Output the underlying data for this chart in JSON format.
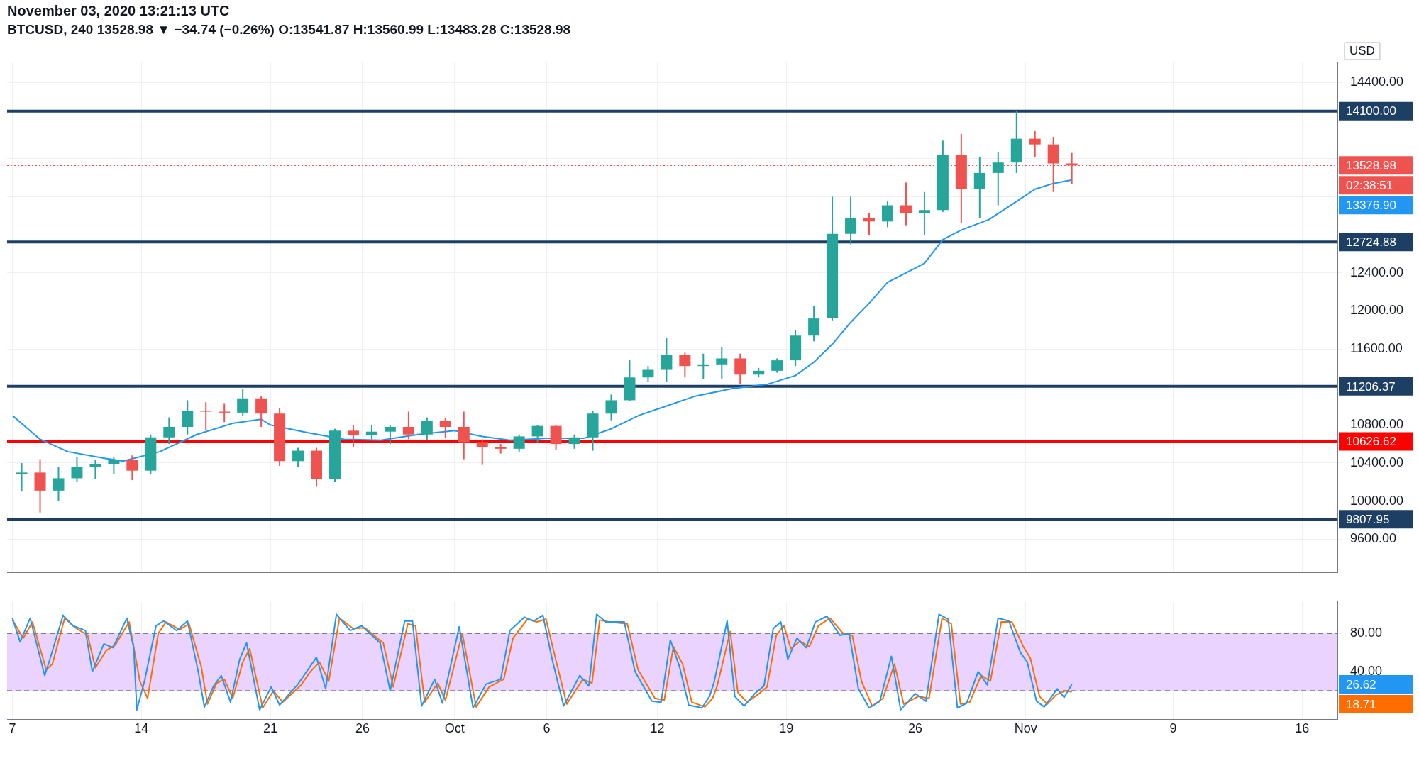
{
  "chart_data": [
    {
      "type": "candlestick",
      "title": "November 03, 2020 13:21:13 UTC",
      "subtitle": "BTCUSD, 240  13528.98 ▼ −34.74 (−0.26%)  O:13541.87  H:13560.99  L:13483.28  C:13528.98",
      "x": [
        "2020-09-07T12:00",
        "2020-09-08T12:00",
        "2020-09-09T12:00",
        "2020-09-10T12:00",
        "2020-09-11T12:00",
        "2020-09-12T12:00",
        "2020-09-13T12:00",
        "2020-09-14T12:00",
        "2020-09-15T12:00",
        "2020-09-16T12:00",
        "2020-09-17T12:00",
        "2020-09-18T12:00",
        "2020-09-19T12:00",
        "2020-09-20T12:00",
        "2020-09-21T12:00",
        "2020-09-22T12:00",
        "2020-09-23T12:00",
        "2020-09-24T12:00",
        "2020-09-25T12:00",
        "2020-09-26T12:00",
        "2020-09-27T12:00",
        "2020-09-28T12:00",
        "2020-09-29T12:00",
        "2020-09-30T12:00",
        "2020-10-01T12:00",
        "2020-10-02T12:00",
        "2020-10-03T12:00",
        "2020-10-04T12:00",
        "2020-10-05T12:00",
        "2020-10-06T12:00",
        "2020-10-07T12:00",
        "2020-10-08T12:00",
        "2020-10-09T12:00",
        "2020-10-10T12:00",
        "2020-10-11T12:00",
        "2020-10-12T12:00",
        "2020-10-13T12:00",
        "2020-10-14T12:00",
        "2020-10-15T12:00",
        "2020-10-16T12:00",
        "2020-10-17T12:00",
        "2020-10-18T12:00",
        "2020-10-19T12:00",
        "2020-10-20T12:00",
        "2020-10-21T12:00",
        "2020-10-22T12:00",
        "2020-10-23T12:00",
        "2020-10-24T12:00",
        "2020-10-25T12:00",
        "2020-10-26T12:00",
        "2020-10-27T12:00",
        "2020-10-28T12:00",
        "2020-10-29T12:00",
        "2020-10-30T12:00",
        "2020-10-31T12:00",
        "2020-11-01T12:00",
        "2020-11-02T12:00",
        "2020-11-03T12:00"
      ],
      "ohlc": [
        [
          10280,
          10400,
          10100,
          10300
        ],
        [
          10300,
          10440,
          9880,
          10110
        ],
        [
          10110,
          10360,
          10000,
          10240
        ],
        [
          10240,
          10460,
          10200,
          10360
        ],
        [
          10360,
          10430,
          10230,
          10390
        ],
        [
          10390,
          10460,
          10280,
          10430
        ],
        [
          10430,
          10480,
          10220,
          10320
        ],
        [
          10320,
          10700,
          10280,
          10670
        ],
        [
          10670,
          10880,
          10600,
          10780
        ],
        [
          10780,
          11060,
          10700,
          10950
        ],
        [
          10950,
          11040,
          10750,
          10940
        ],
        [
          10940,
          11030,
          10830,
          10930
        ],
        [
          10930,
          11180,
          10900,
          11080
        ],
        [
          11080,
          11100,
          10780,
          10920
        ],
        [
          10920,
          10980,
          10370,
          10420
        ],
        [
          10420,
          10560,
          10360,
          10530
        ],
        [
          10530,
          10560,
          10150,
          10230
        ],
        [
          10230,
          10760,
          10200,
          10740
        ],
        [
          10740,
          10800,
          10570,
          10690
        ],
        [
          10690,
          10800,
          10650,
          10730
        ],
        [
          10730,
          10800,
          10600,
          10780
        ],
        [
          10780,
          10940,
          10650,
          10700
        ],
        [
          10700,
          10880,
          10640,
          10840
        ],
        [
          10840,
          10870,
          10660,
          10780
        ],
        [
          10780,
          10940,
          10440,
          10620
        ],
        [
          10620,
          10650,
          10380,
          10570
        ],
        [
          10570,
          10600,
          10500,
          10550
        ],
        [
          10550,
          10700,
          10520,
          10680
        ],
        [
          10680,
          10800,
          10620,
          10790
        ],
        [
          10790,
          10800,
          10540,
          10600
        ],
        [
          10600,
          10700,
          10550,
          10670
        ],
        [
          10670,
          10950,
          10530,
          10920
        ],
        [
          10920,
          11120,
          10850,
          11060
        ],
        [
          11060,
          11480,
          11050,
          11300
        ],
        [
          11300,
          11420,
          11250,
          11380
        ],
        [
          11380,
          11720,
          11250,
          11540
        ],
        [
          11540,
          11560,
          11300,
          11420
        ],
        [
          11420,
          11550,
          11280,
          11430
        ],
        [
          11430,
          11620,
          11280,
          11500
        ],
        [
          11500,
          11550,
          11230,
          11330
        ],
        [
          11330,
          11400,
          11300,
          11370
        ],
        [
          11370,
          11500,
          11350,
          11480
        ],
        [
          11480,
          11800,
          11420,
          11740
        ],
        [
          11740,
          12050,
          11680,
          11920
        ],
        [
          11920,
          13200,
          11900,
          12810
        ],
        [
          12810,
          13200,
          12700,
          12980
        ],
        [
          12980,
          13030,
          12800,
          12940
        ],
        [
          12940,
          13150,
          12880,
          13110
        ],
        [
          13110,
          13350,
          12900,
          13030
        ],
        [
          13030,
          13250,
          12800,
          13060
        ],
        [
          13060,
          13790,
          13040,
          13640
        ],
        [
          13640,
          13860,
          12920,
          13280
        ],
        [
          13280,
          13620,
          12980,
          13450
        ],
        [
          13450,
          13670,
          13110,
          13560
        ],
        [
          13560,
          14100,
          13450,
          13810
        ],
        [
          13810,
          13890,
          13620,
          13750
        ],
        [
          13750,
          13830,
          13250,
          13550
        ],
        [
          13550,
          13660,
          13330,
          13528.98
        ]
      ],
      "series": [
        {
          "type": "line",
          "color": "#2196f3",
          "x": [
            "2020-09-07T00:00",
            "2020-09-08T12:00",
            "2020-09-10T00:00",
            "2020-09-12T00:00",
            "2020-09-13T00:00",
            "2020-09-15T00:00",
            "2020-09-17T00:00",
            "2020-09-19T00:00",
            "2020-09-20T12:00",
            "2020-09-21T00:00",
            "2020-09-23T00:00",
            "2020-09-25T00:00",
            "2020-09-27T00:00",
            "2020-09-29T00:00",
            "2020-10-01T00:00",
            "2020-10-02T12:00",
            "2020-10-04T00:00",
            "2020-10-06T00:00",
            "2020-10-08T00:00",
            "2020-10-09T12:00",
            "2020-10-11T00:00",
            "2020-10-12T12:00",
            "2020-10-14T00:00",
            "2020-10-16T00:00",
            "2020-10-18T00:00",
            "2020-10-19T12:00",
            "2020-10-20T12:00",
            "2020-10-21T12:00",
            "2020-10-22T12:00",
            "2020-10-23T12:00",
            "2020-10-24T12:00",
            "2020-10-26T12:00",
            "2020-10-27T12:00",
            "2020-10-28T12:00",
            "2020-10-30T00:00",
            "2020-10-31T12:00",
            "2020-11-01T12:00",
            "2020-11-02T12:00",
            "2020-11-03T12:00"
          ],
          "values": [
            10900,
            10650,
            10520,
            10450,
            10420,
            10520,
            10700,
            10820,
            10860,
            10800,
            10720,
            10650,
            10640,
            10700,
            10740,
            10680,
            10640,
            10660,
            10660,
            10760,
            10900,
            11000,
            11100,
            11180,
            11230,
            11320,
            11460,
            11650,
            11880,
            12080,
            12300,
            12500,
            12750,
            12850,
            12960,
            13150,
            13280,
            13340,
            13376.9
          ]
        }
      ],
      "xlim": [
        "2020-09-06T17:00",
        "2020-11-17T22:00"
      ],
      "xticks": [
        {
          "value": "2020-09-07",
          "label": null
        },
        {
          "value": "2020-09-14",
          "label": null
        },
        {
          "value": "2020-09-21",
          "label": null
        },
        {
          "value": "2020-09-26",
          "label": null
        },
        {
          "value": "2020-10-01",
          "label": null
        },
        {
          "value": "2020-10-06",
          "label": null
        },
        {
          "value": "2020-10-12",
          "label": null
        },
        {
          "value": "2020-10-19",
          "label": null
        },
        {
          "value": "2020-10-26",
          "label": null
        },
        {
          "value": "2020-11-01",
          "label": null
        },
        {
          "value": "2020-11-09",
          "label": null
        },
        {
          "value": "2020-11-16",
          "label": null
        }
      ],
      "ylim": [
        9250,
        14620
      ],
      "yticks": [
        {
          "value": 9600,
          "label": "9600.00"
        },
        {
          "value": 10000,
          "label": "10000.00"
        },
        {
          "value": 10400,
          "label": "10400.00"
        },
        {
          "value": 10800,
          "label": "10800.00"
        },
        {
          "value": 11200,
          "label": null
        },
        {
          "value": 11600,
          "label": "11600.00"
        },
        {
          "value": 12000,
          "label": "12000.00"
        },
        {
          "value": 12400,
          "label": "12400.00"
        },
        {
          "value": 12800,
          "label": null
        },
        {
          "value": 13200,
          "label": null
        },
        {
          "value": 13600,
          "label": null
        },
        {
          "value": 14000,
          "label": null
        },
        {
          "value": 14400,
          "label": "14400.00"
        }
      ],
      "ref_lines": [
        {
          "axis": "y",
          "value": 14100,
          "label": "14100.00",
          "color": "#1c3f63"
        },
        {
          "axis": "y",
          "value": 12724.88,
          "label": "12724.88",
          "color": "#1c3f63"
        },
        {
          "axis": "y",
          "value": 11206.37,
          "label": "11206.37",
          "color": "#1c3f63"
        },
        {
          "axis": "y",
          "value": 10626.62,
          "label": "10626.62",
          "color": "#ff0000"
        },
        {
          "axis": "y",
          "value": 9807.95,
          "label": "9807.95",
          "color": "#1c3f63"
        },
        {
          "axis": "y",
          "value": 13528.98,
          "label": "13528.98",
          "color": "#ef5350",
          "line_style": "dotted"
        }
      ],
      "annotations": [
        "USD",
        "02:38:51",
        "13376.90"
      ],
      "grid": true,
      "tick_labels": "y"
    },
    {
      "type": "line",
      "series": [
        {
          "color": "#2196f3",
          "x": [
            "2020-09-07T00:00",
            "2020-09-07T10:00",
            "2020-09-07T23:00",
            "2020-09-08T18:00",
            "2020-09-09T00:00",
            "2020-09-09T18:00",
            "2020-09-10T07:00",
            "2020-09-10T23:00",
            "2020-09-11T08:00",
            "2020-09-11T23:00",
            "2020-09-12T11:00",
            "2020-09-13T05:00",
            "2020-09-13T14:00",
            "2020-09-13T18:00",
            "2020-09-14T04:00",
            "2020-09-14T19:00",
            "2020-09-15T05:00",
            "2020-09-15T22:00",
            "2020-09-16T12:00",
            "2020-09-17T02:00",
            "2020-09-17T10:00",
            "2020-09-17T22:00",
            "2020-09-18T08:00",
            "2020-09-18T20:00",
            "2020-09-19T08:00",
            "2020-09-19T17:00",
            "2020-09-20T10:00",
            "2020-09-21T01:00",
            "2020-09-21T12:00",
            "2020-09-22T12:00",
            "2020-09-23T00:00",
            "2020-09-23T12:00",
            "2020-09-24T00:00",
            "2020-09-24T14:00",
            "2020-09-25T08:00",
            "2020-09-25T23:00",
            "2020-09-26T23:00",
            "2020-09-27T12:00",
            "2020-09-28T07:00",
            "2020-09-28T17:00",
            "2020-09-29T05:00",
            "2020-09-29T22:00",
            "2020-09-30T08:00",
            "2020-10-01T06:00",
            "2020-10-02T00:00",
            "2020-10-02T17:00",
            "2020-10-03T12:00",
            "2020-10-04T00:00",
            "2020-10-04T19:00",
            "2020-10-05T07:00",
            "2020-10-05T19:00",
            "2020-10-06T07:00",
            "2020-10-06T22:00",
            "2020-10-07T19:00",
            "2020-10-08T07:00",
            "2020-10-08T17:00",
            "2020-10-09T05:00",
            "2020-10-10T05:00",
            "2020-10-10T19:00",
            "2020-10-11T17:00",
            "2020-10-12T05:00",
            "2020-10-12T17:00",
            "2020-10-13T05:00",
            "2020-10-13T17:00",
            "2020-10-14T10:00",
            "2020-10-14T20:00",
            "2020-10-15T02:00",
            "2020-10-15T19:00",
            "2020-10-16T05:00",
            "2020-10-16T17:00",
            "2020-10-17T07:00",
            "2020-10-17T19:00",
            "2020-10-18T07:00",
            "2020-10-18T17:00",
            "2020-10-19T02:00",
            "2020-10-19T14:00",
            "2020-10-20T02:00",
            "2020-10-20T14:00",
            "2020-10-21T05:00",
            "2020-10-21T22:00",
            "2020-10-22T10:00",
            "2020-10-22T22:00",
            "2020-10-23T12:00",
            "2020-10-24T02:00",
            "2020-10-24T17:00",
            "2020-10-25T05:00",
            "2020-10-26T00:00",
            "2020-10-26T14:00",
            "2020-10-27T07:00",
            "2020-10-27T19:00",
            "2020-10-28T07:00",
            "2020-10-28T19:00",
            "2020-10-29T10:00",
            "2020-10-29T22:00",
            "2020-10-30T12:00",
            "2020-10-31T02:00",
            "2020-10-31T17:00",
            "2020-11-01T02:00",
            "2020-11-01T14:00",
            "2020-11-02T00:00",
            "2020-11-02T17:00",
            "2020-11-03T02:00",
            "2020-11-03T12:00"
          ],
          "values": [
            96,
            71,
            96,
            36,
            51,
            99,
            88,
            83,
            40,
            69,
            65,
            96,
            65,
            0,
            30,
            88,
            93,
            83,
            93,
            40,
            3,
            25,
            36,
            8,
            53,
            70,
            0,
            24,
            5,
            27,
            41,
            55,
            22,
            100,
            83,
            88,
            70,
            20,
            93,
            93,
            4,
            32,
            7,
            87,
            2,
            27,
            32,
            83,
            97,
            93,
            99,
            53,
            4,
            36,
            25,
            100,
            92,
            92,
            40,
            9,
            8,
            73,
            45,
            5,
            2,
            14,
            29,
            93,
            14,
            4,
            17,
            25,
            85,
            92,
            53,
            75,
            65,
            92,
            98,
            78,
            80,
            22,
            2,
            9,
            56,
            0,
            17,
            9,
            100,
            95,
            2,
            7,
            40,
            26,
            96,
            93,
            60,
            50,
            9,
            3,
            22,
            13,
            26.62
          ]
        },
        {
          "color": "#ff6d00",
          "x": [
            "2020-09-07T00:00",
            "2020-09-07T14:00",
            "2020-09-08T02:00",
            "2020-09-08T20:00",
            "2020-09-09T04:00",
            "2020-09-09T20:00",
            "2020-09-10T10:00",
            "2020-09-11T02:00",
            "2020-09-11T12:00",
            "2020-09-12T02:00",
            "2020-09-12T14:00",
            "2020-09-13T08:00",
            "2020-09-13T22:00",
            "2020-09-14T08:00",
            "2020-09-14T22:00",
            "2020-09-15T08:00",
            "2020-09-16T02:00",
            "2020-09-16T14:00",
            "2020-09-17T06:00",
            "2020-09-17T14:00",
            "2020-09-18T02:00",
            "2020-09-18T12:00",
            "2020-09-18T23:00",
            "2020-09-19T12:00",
            "2020-09-19T21:00",
            "2020-09-20T14:00",
            "2020-09-21T04:00",
            "2020-09-21T16:00",
            "2020-09-22T16:00",
            "2020-09-23T04:00",
            "2020-09-23T16:00",
            "2020-09-24T04:00",
            "2020-09-24T18:00",
            "2020-09-25T12:00",
            "2020-09-26T03:00",
            "2020-09-27T03:00",
            "2020-09-27T16:00",
            "2020-09-28T11:00",
            "2020-09-28T21:00",
            "2020-09-29T09:00",
            "2020-09-30T02:00",
            "2020-09-30T12:00",
            "2020-10-01T10:00",
            "2020-10-02T04:00",
            "2020-10-02T21:00",
            "2020-10-03T16:00",
            "2020-10-04T04:00",
            "2020-10-04T23:00",
            "2020-10-05T11:00",
            "2020-10-05T23:00",
            "2020-10-06T11:00",
            "2020-10-07T02:00",
            "2020-10-07T23:00",
            "2020-10-08T11:00",
            "2020-10-08T21:00",
            "2020-10-09T09:00",
            "2020-10-10T09:00",
            "2020-10-10T23:00",
            "2020-10-11T21:00",
            "2020-10-12T09:00",
            "2020-10-12T21:00",
            "2020-10-13T09:00",
            "2020-10-13T21:00",
            "2020-10-14T14:00",
            "2020-10-15T00:00",
            "2020-10-15T06:00",
            "2020-10-15T23:00",
            "2020-10-16T09:00",
            "2020-10-16T21:00",
            "2020-10-17T11:00",
            "2020-10-17T23:00",
            "2020-10-18T11:00",
            "2020-10-18T21:00",
            "2020-10-19T06:00",
            "2020-10-19T18:00",
            "2020-10-20T06:00",
            "2020-10-20T18:00",
            "2020-10-21T09:00",
            "2020-10-22T02:00",
            "2020-10-22T14:00",
            "2020-10-23T02:00",
            "2020-10-23T16:00",
            "2020-10-24T06:00",
            "2020-10-24T21:00",
            "2020-10-25T09:00",
            "2020-10-26T04:00",
            "2020-10-26T18:00",
            "2020-10-27T11:00",
            "2020-10-27T23:00",
            "2020-10-28T11:00",
            "2020-10-28T23:00",
            "2020-10-29T14:00",
            "2020-10-30T02:00",
            "2020-10-30T16:00",
            "2020-10-31T06:00",
            "2020-10-31T21:00",
            "2020-11-01T06:00",
            "2020-11-01T18:00",
            "2020-11-02T04:00",
            "2020-11-02T16:00",
            "2020-11-03T04:00",
            "2020-11-03T12:00"
          ],
          "values": [
            94,
            75,
            92,
            42,
            48,
            96,
            86,
            78,
            44,
            62,
            68,
            92,
            30,
            12,
            80,
            92,
            84,
            90,
            45,
            6,
            28,
            32,
            12,
            50,
            64,
            2,
            20,
            8,
            26,
            40,
            50,
            30,
            96,
            85,
            86,
            70,
            24,
            90,
            88,
            8,
            28,
            10,
            80,
            3,
            24,
            32,
            75,
            95,
            92,
            95,
            55,
            6,
            32,
            28,
            94,
            92,
            90,
            42,
            12,
            10,
            66,
            48,
            8,
            3,
            12,
            25,
            82,
            18,
            8,
            16,
            24,
            78,
            88,
            64,
            72,
            66,
            88,
            96,
            80,
            78,
            30,
            4,
            12,
            48,
            6,
            14,
            12,
            96,
            90,
            6,
            8,
            36,
            30,
            92,
            92,
            66,
            54,
            14,
            6,
            16,
            20,
            18.71
          ]
        }
      ],
      "xlim": [
        "2020-09-06T17:00",
        "2020-11-17T22:00"
      ],
      "xticks": [
        {
          "value": "2020-09-07",
          "label": "7"
        },
        {
          "value": "2020-09-14",
          "label": "14"
        },
        {
          "value": "2020-09-21",
          "label": "21"
        },
        {
          "value": "2020-09-26",
          "label": "26"
        },
        {
          "value": "2020-10-01",
          "label": "Oct"
        },
        {
          "value": "2020-10-06",
          "label": "6"
        },
        {
          "value": "2020-10-12",
          "label": "12"
        },
        {
          "value": "2020-10-19",
          "label": "19"
        },
        {
          "value": "2020-10-26",
          "label": "26"
        },
        {
          "value": "2020-11-01",
          "label": "Nov"
        },
        {
          "value": "2020-11-09",
          "label": "9"
        },
        {
          "value": "2020-11-16",
          "label": "16"
        }
      ],
      "ylim": [
        -10,
        113
      ],
      "yticks": [
        {
          "value": 40,
          "label": "40.00"
        },
        {
          "value": 80,
          "label": "80.00"
        }
      ],
      "bands": [
        {
          "axis": "y",
          "from": 20,
          "to": 80,
          "color": "#e6ccff"
        }
      ],
      "ref_lines": [
        {
          "axis": "y",
          "value": 80,
          "color": "#787b86",
          "line_style": "dashed"
        },
        {
          "axis": "y",
          "value": 20,
          "color": "#787b86",
          "line_style": "dashed"
        }
      ],
      "annotations": [
        "26.62",
        "18.71"
      ],
      "grid": true
    }
  ]
}
